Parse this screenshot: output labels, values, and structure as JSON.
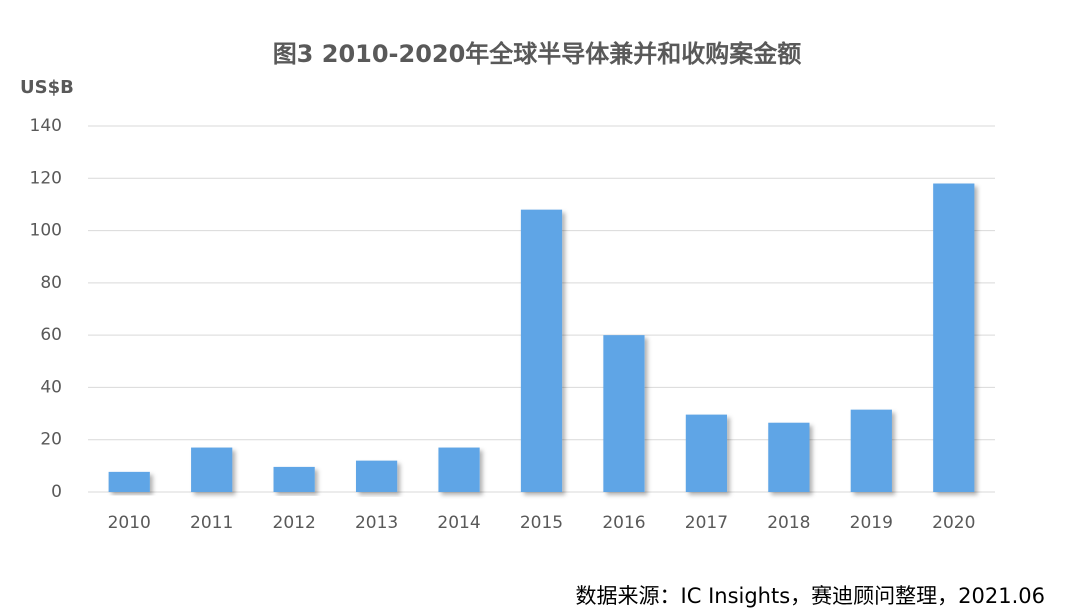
{
  "chart_data": {
    "type": "bar",
    "title": "图3 2010-2020年全球半导体兼并和收购案金额",
    "y_label": "US$B",
    "source": "数据来源：IC Insights，赛迪顾问整理，2021.06",
    "categories": [
      "2010",
      "2011",
      "2012",
      "2013",
      "2014",
      "2015",
      "2016",
      "2017",
      "2018",
      "2019",
      "2020"
    ],
    "values": [
      7.7,
      17,
      9.6,
      12,
      17,
      108,
      60,
      29.6,
      26.5,
      31.5,
      118
    ],
    "color": "#5fa5e6",
    "ylim": [
      0,
      140
    ],
    "yticks": [
      0,
      20,
      40,
      60,
      80,
      100,
      120,
      140
    ],
    "grid": true
  }
}
